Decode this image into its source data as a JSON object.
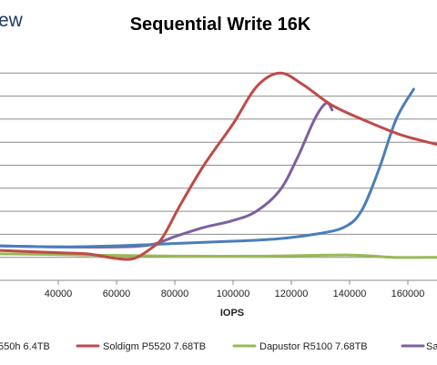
{
  "logo_text": "ew",
  "chart_data": {
    "type": "line",
    "title": "Sequential Write 16K",
    "xlabel": "IOPS",
    "ylabel": "",
    "xlim": [
      20000,
      170000
    ],
    "xticks": [
      40000,
      60000,
      80000,
      100000,
      120000,
      140000,
      160000
    ],
    "xtick_labels": [
      "40000",
      "60000",
      "80000",
      "100000",
      "120000",
      "140000",
      "160000"
    ],
    "ylim": [
      0,
      10
    ],
    "yticks": [
      1,
      2,
      3,
      4,
      5,
      6,
      7,
      8,
      9
    ],
    "grid": true,
    "legend_position": "bottom",
    "series": [
      {
        "name": "...550h 6.4TB",
        "color": "#4a7ebb",
        "points": [
          [
            20000,
            1.5
          ],
          [
            40000,
            1.45
          ],
          [
            60000,
            1.5
          ],
          [
            80000,
            1.6
          ],
          [
            100000,
            1.7
          ],
          [
            115000,
            1.8
          ],
          [
            128000,
            2.0
          ],
          [
            138000,
            2.3
          ],
          [
            144000,
            3.0
          ],
          [
            150000,
            4.8
          ],
          [
            156000,
            7.0
          ],
          [
            162000,
            8.3
          ]
        ]
      },
      {
        "name": "Soldigm P5520 7.68TB",
        "color": "#be4b48",
        "points": [
          [
            20000,
            1.3
          ],
          [
            40000,
            1.2
          ],
          [
            50000,
            1.15
          ],
          [
            60000,
            0.95
          ],
          [
            66000,
            0.95
          ],
          [
            72000,
            1.4
          ],
          [
            76000,
            1.9
          ],
          [
            82000,
            3.3
          ],
          [
            90000,
            5.0
          ],
          [
            100000,
            6.8
          ],
          [
            108000,
            8.4
          ],
          [
            116000,
            9.0
          ],
          [
            124000,
            8.5
          ],
          [
            134000,
            7.6
          ],
          [
            146000,
            6.9
          ],
          [
            158000,
            6.3
          ],
          [
            170000,
            5.9
          ]
        ]
      },
      {
        "name": "Dapustor R5100 7.68TB",
        "color": "#98b954",
        "points": [
          [
            20000,
            1.15
          ],
          [
            50000,
            1.1
          ],
          [
            80000,
            1.05
          ],
          [
            110000,
            1.05
          ],
          [
            140000,
            1.1
          ],
          [
            155000,
            1.0
          ],
          [
            170000,
            1.0
          ]
        ]
      },
      {
        "name": "Sa...",
        "color": "#7d60a0",
        "points": [
          [
            20000,
            1.5
          ],
          [
            40000,
            1.45
          ],
          [
            60000,
            1.45
          ],
          [
            72000,
            1.55
          ],
          [
            80000,
            1.9
          ],
          [
            90000,
            2.3
          ],
          [
            100000,
            2.6
          ],
          [
            108000,
            3.0
          ],
          [
            116000,
            3.9
          ],
          [
            122000,
            5.3
          ],
          [
            128000,
            7.0
          ],
          [
            132000,
            7.7
          ],
          [
            134000,
            7.4
          ]
        ]
      }
    ]
  }
}
